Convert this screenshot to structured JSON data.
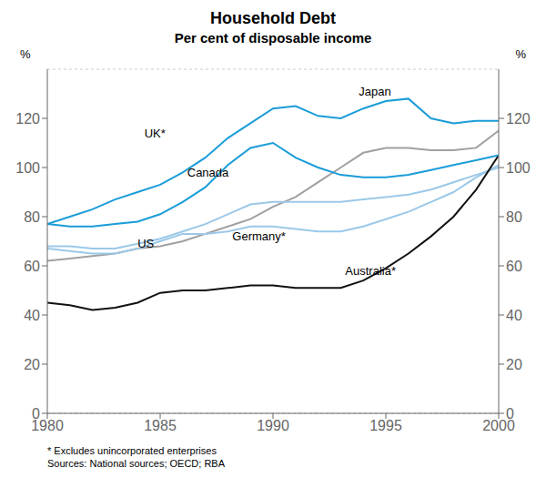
{
  "chart_data": {
    "type": "line",
    "title": "Household Debt",
    "subtitle": "Per cent of disposable income",
    "y_label": "%",
    "y2_label": "%",
    "footnote": "* Excludes unincorporated enterprises\nSources: National sources; OECD; RBA",
    "x": [
      1980,
      1981,
      1982,
      1983,
      1984,
      1985,
      1986,
      1987,
      1988,
      1989,
      1990,
      1991,
      1992,
      1993,
      1994,
      1995,
      1996,
      1997,
      1998,
      1999,
      2000
    ],
    "xlim": [
      1980,
      2000
    ],
    "xticks": [
      1980,
      1985,
      1990,
      1995,
      2000
    ],
    "ylim": [
      0,
      140
    ],
    "yticks": [
      0,
      20,
      40,
      60,
      80,
      100,
      120
    ],
    "y2lim": [
      0,
      140
    ],
    "y2ticks": [
      0,
      20,
      40,
      60,
      80,
      100,
      120
    ],
    "grid": true,
    "series": [
      {
        "name": "Germany*",
        "color": "#a0a0a0",
        "values": [
          62,
          63,
          64,
          65,
          67,
          68,
          70,
          73,
          76,
          79,
          84,
          88,
          94,
          100,
          106,
          108,
          108,
          107,
          107,
          108,
          115
        ]
      },
      {
        "name": "Canada",
        "color": "#9bc8e8",
        "values": [
          68,
          68,
          67,
          67,
          69,
          71,
          74,
          77,
          81,
          85,
          86,
          86,
          86,
          86,
          87,
          88,
          89,
          91,
          94,
          97,
          100
        ]
      },
      {
        "name": "US",
        "color": "#9bc8e8",
        "values": [
          67,
          66,
          65,
          65,
          67,
          70,
          73,
          73,
          74,
          76,
          76,
          75,
          74,
          74,
          76,
          79,
          82,
          86,
          90,
          96,
          101
        ]
      },
      {
        "name": "Australia*",
        "color": "#111111",
        "values": [
          45,
          44,
          42,
          43,
          45,
          49,
          50,
          50,
          51,
          52,
          52,
          51,
          51,
          51,
          54,
          59,
          65,
          72,
          80,
          91,
          105
        ]
      },
      {
        "name": "UK*",
        "color": "#1a9cd8",
        "values": [
          77,
          76,
          76,
          77,
          78,
          81,
          86,
          92,
          101,
          108,
          110,
          104,
          100,
          97,
          96,
          96,
          97,
          99,
          101,
          103,
          105
        ]
      },
      {
        "name": "Japan",
        "color": "#1a9cd8",
        "values": [
          77,
          80,
          83,
          87,
          90,
          93,
          98,
          104,
          112,
          118,
          124,
          125,
          121,
          120,
          124,
          127,
          128,
          120,
          118,
          119,
          119
        ]
      }
    ],
    "annotations": [
      {
        "text": "Japan",
        "x": 1993.8,
        "y": 131
      },
      {
        "text": "UK*",
        "x": 1984.3,
        "y": 114
      },
      {
        "text": "Canada",
        "x": 1986.2,
        "y": 98
      },
      {
        "text": "US",
        "x": 1984.0,
        "y": 69
      },
      {
        "text": "Germany*",
        "x": 1988.2,
        "y": 72
      },
      {
        "text": "Australia*",
        "x": 1993.2,
        "y": 58
      }
    ]
  }
}
